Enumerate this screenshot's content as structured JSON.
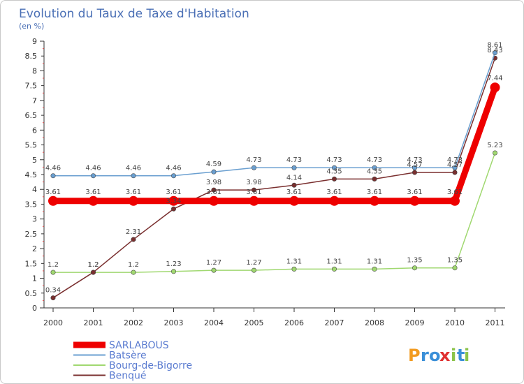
{
  "chart_data": {
    "type": "line",
    "title": "Evolution du Taux de Taxe d'Habitation",
    "subtitle": "(en %)",
    "x": [
      "2000",
      "2001",
      "2002",
      "2003",
      "2004",
      "2005",
      "2006",
      "2007",
      "2008",
      "2009",
      "2010",
      "2011"
    ],
    "ylim": [
      0,
      9
    ],
    "yticks": [
      "0",
      "0.5",
      "1",
      "1.5",
      "2",
      "2.5",
      "3",
      "3.5",
      "4",
      "4.5",
      "5",
      "5.5",
      "6",
      "6.5",
      "7",
      "7.5",
      "8",
      "8.5",
      "9"
    ],
    "grid": false,
    "series": [
      {
        "name": "SARLABOUS",
        "color": "#ee0000",
        "values": [
          3.61,
          3.61,
          3.61,
          3.61,
          3.61,
          3.61,
          3.61,
          3.61,
          3.61,
          3.61,
          3.61,
          7.44
        ],
        "labels": [
          "3.61",
          "3.61",
          "3.61",
          "3.61",
          "3.61",
          "3.61",
          "3.61",
          "3.61",
          "3.61",
          "3.61",
          "3.61",
          "7.44"
        ]
      },
      {
        "name": "Batsère",
        "color": "#6a9fd0",
        "values": [
          4.46,
          4.46,
          4.46,
          4.46,
          4.59,
          4.73,
          4.73,
          4.73,
          4.73,
          4.73,
          4.73,
          8.61
        ],
        "labels": [
          "4.46",
          "4.46",
          "4.46",
          "4.46",
          "4.59",
          "4.73",
          "4.73",
          "4.73",
          "4.73",
          "4.73",
          "4.73",
          "8.61"
        ]
      },
      {
        "name": "Bourg-de-Bigorre",
        "color": "#a0d870",
        "values": [
          1.2,
          1.2,
          1.2,
          1.23,
          1.27,
          1.27,
          1.31,
          1.31,
          1.31,
          1.35,
          1.35,
          5.23
        ],
        "labels": [
          "1.2",
          "1.2",
          "1.2",
          "1.23",
          "1.27",
          "1.27",
          "1.31",
          "1.31",
          "1.31",
          "1.35",
          "1.35",
          "5.23"
        ]
      },
      {
        "name": "Benqué",
        "color": "#7a2f2f",
        "values": [
          0.34,
          1.2,
          2.31,
          3.34,
          3.98,
          3.98,
          4.14,
          4.35,
          4.35,
          4.57,
          4.57,
          8.43
        ],
        "labels": [
          "0.34",
          "1.2",
          "2.31",
          "3.34",
          "3.98",
          "3.98",
          "4.14",
          "4.35",
          "4.35",
          "4.57",
          "4.57",
          "8.43"
        ]
      }
    ],
    "legend_position": "bottom-left"
  },
  "brand": {
    "letters": [
      "P",
      "r",
      "o",
      "x",
      "i",
      "t",
      "i"
    ],
    "colors": [
      "#f29b20",
      "#3a8fd8",
      "#3a8fd8",
      "#e03030",
      "#8bc34a",
      "#3a8fd8",
      "#8bc34a"
    ]
  }
}
